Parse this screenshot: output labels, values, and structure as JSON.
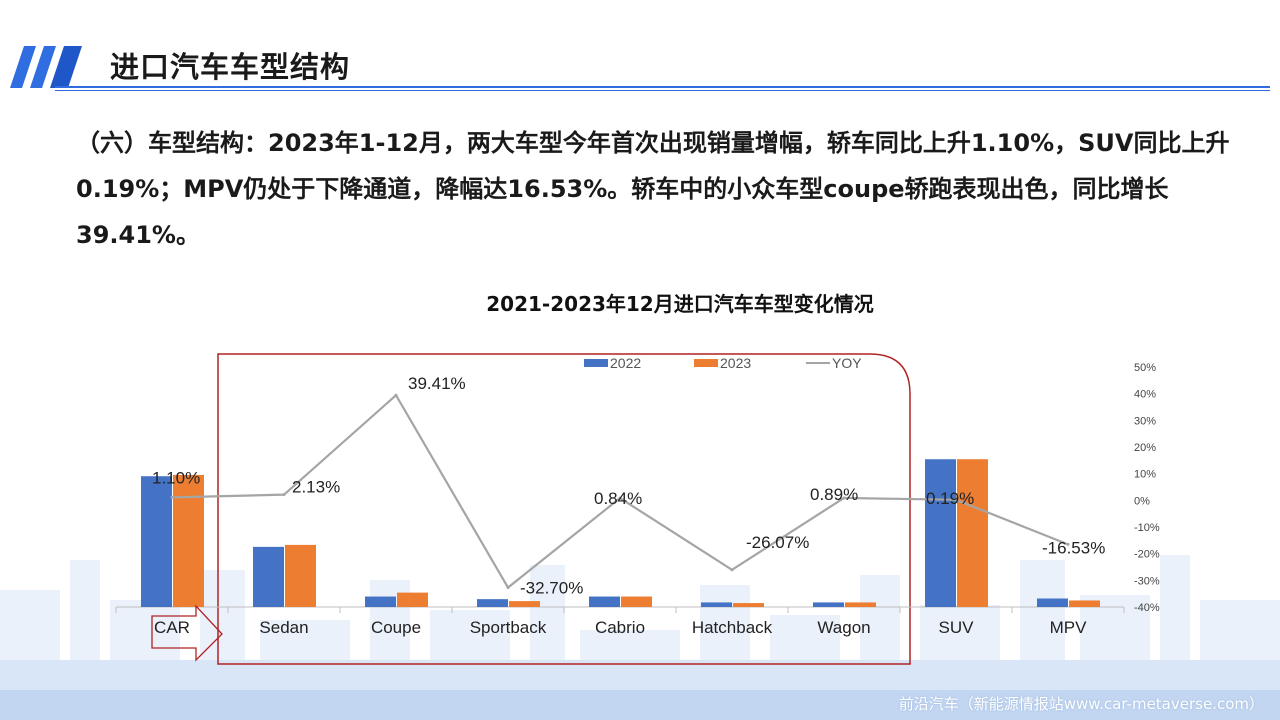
{
  "header": {
    "title": "进口汽车车型结构"
  },
  "intro": {
    "text": "（六）车型结构：2023年1-12月，两大车型今年首次出现销量增幅，轿车同比上升1.10%，SUV同比上升0.19%；MPV仍处于下降通道，降幅达16.53%。轿车中的小众车型coupe轿跑表现出色，同比增长39.41%。"
  },
  "footer": {
    "text": "前沿汽车（新能源情报站www.car-metaverse.com）"
  },
  "colors": {
    "accent": "#2f6de0",
    "series_2022": "#4472c4",
    "series_2023": "#ed7d31",
    "yoy_line": "#a5a5a5",
    "highlight_box": "#b22222"
  },
  "chart_data": {
    "type": "bar",
    "title": "2021-2023年12月进口汽车车型变化情况",
    "categories": [
      "CAR",
      "Sedan",
      "Coupe",
      "Sportback",
      "Cabrio",
      "Hatchback",
      "Wagon",
      "SUV",
      "MPV"
    ],
    "series": [
      {
        "name": "2022",
        "type": "bar",
        "values": [
          100,
          46,
          8,
          6,
          8,
          3.5,
          3.5,
          113,
          6.5
        ]
      },
      {
        "name": "2023",
        "type": "bar",
        "values": [
          101,
          47.5,
          11,
          4.5,
          8,
          3,
          3.5,
          113,
          5
        ]
      },
      {
        "name": "YOY",
        "type": "line",
        "axis": "right",
        "values": [
          1.1,
          2.13,
          39.41,
          -32.7,
          0.84,
          -26.07,
          0.89,
          0.19,
          -16.53
        ]
      }
    ],
    "yoy_labels": [
      "1.10%",
      "2.13%",
      "39.41%",
      "-32.70%",
      "0.84%",
      "-26.07%",
      "0.89%",
      "0.19%",
      "-16.53%"
    ],
    "right_axis": {
      "ticks": [
        "50%",
        "40%",
        "30%",
        "20%",
        "10%",
        "0%",
        "-10%",
        "-20%",
        "-30%",
        "-40%"
      ],
      "ylim": [
        -40,
        50
      ]
    },
    "legend": {
      "position": "top",
      "entries": [
        "2022",
        "2023",
        "YOY"
      ]
    },
    "grid": false
  }
}
